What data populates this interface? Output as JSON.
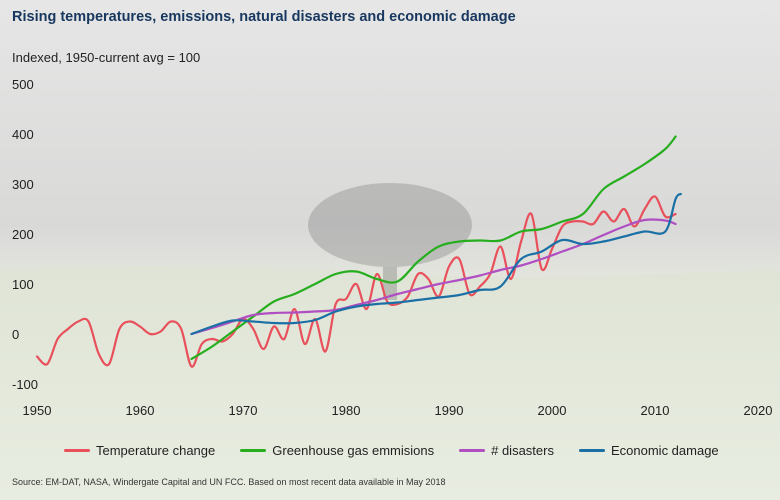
{
  "title": "Rising temperatures, emissions, natural disasters and economic damage",
  "subtitle": "Indexed, 1950-current avg = 100",
  "source": "Source: EM-DAT, NASA, Windergate Capital and UN FCC. Based on most recent data available in May 2018",
  "colors": {
    "temperature": "#e8505b",
    "greenhouse": "#27ae1f",
    "disasters": "#b04fc2",
    "economic": "#1a6fa5",
    "title": "#17375e"
  },
  "chart_data": {
    "type": "line",
    "title": "Rising temperatures, emissions, natural disasters and economic damage",
    "ylabel": "Indexed, 1950-current avg = 100",
    "xlabel": "",
    "xlim": [
      1950,
      2020
    ],
    "ylim": [
      -100,
      500
    ],
    "x_ticks": [
      1950,
      1960,
      1970,
      1980,
      1990,
      2000,
      2010,
      2020
    ],
    "y_ticks": [
      -100,
      0,
      100,
      200,
      300,
      400,
      500
    ],
    "grid": false,
    "legend_position": "bottom",
    "series": [
      {
        "name": "Temperature change",
        "color_key": "temperature",
        "points": [
          [
            1950,
            -45
          ],
          [
            1951,
            -60
          ],
          [
            1952,
            -10
          ],
          [
            1953,
            10
          ],
          [
            1954,
            25
          ],
          [
            1955,
            25
          ],
          [
            1956,
            -40
          ],
          [
            1957,
            -60
          ],
          [
            1958,
            10
          ],
          [
            1959,
            25
          ],
          [
            1960,
            15
          ],
          [
            1961,
            0
          ],
          [
            1962,
            5
          ],
          [
            1963,
            25
          ],
          [
            1964,
            10
          ],
          [
            1965,
            -65
          ],
          [
            1966,
            -20
          ],
          [
            1967,
            -10
          ],
          [
            1968,
            -15
          ],
          [
            1969,
            0
          ],
          [
            1970,
            30
          ],
          [
            1971,
            10
          ],
          [
            1972,
            -30
          ],
          [
            1973,
            15
          ],
          [
            1974,
            -10
          ],
          [
            1975,
            50
          ],
          [
            1976,
            -20
          ],
          [
            1977,
            30
          ],
          [
            1978,
            -35
          ],
          [
            1979,
            60
          ],
          [
            1980,
            70
          ],
          [
            1981,
            100
          ],
          [
            1982,
            50
          ],
          [
            1983,
            120
          ],
          [
            1984,
            65
          ],
          [
            1985,
            60
          ],
          [
            1986,
            75
          ],
          [
            1987,
            120
          ],
          [
            1988,
            110
          ],
          [
            1989,
            75
          ],
          [
            1990,
            135
          ],
          [
            1991,
            150
          ],
          [
            1992,
            80
          ],
          [
            1993,
            95
          ],
          [
            1994,
            120
          ],
          [
            1995,
            175
          ],
          [
            1996,
            110
          ],
          [
            1997,
            185
          ],
          [
            1998,
            240
          ],
          [
            1999,
            130
          ],
          [
            2000,
            170
          ],
          [
            2001,
            215
          ],
          [
            2002,
            225
          ],
          [
            2003,
            225
          ],
          [
            2004,
            220
          ],
          [
            2005,
            245
          ],
          [
            2006,
            225
          ],
          [
            2007,
            250
          ],
          [
            2008,
            215
          ],
          [
            2009,
            250
          ],
          [
            2010,
            275
          ],
          [
            2011,
            235
          ],
          [
            2012,
            240
          ]
        ]
      },
      {
        "name": "Greenhouse gas emmisions",
        "color_key": "greenhouse",
        "points": [
          [
            1965,
            -50
          ],
          [
            1967,
            -25
          ],
          [
            1969,
            5
          ],
          [
            1971,
            35
          ],
          [
            1973,
            65
          ],
          [
            1975,
            80
          ],
          [
            1977,
            100
          ],
          [
            1979,
            120
          ],
          [
            1981,
            125
          ],
          [
            1983,
            110
          ],
          [
            1985,
            105
          ],
          [
            1987,
            145
          ],
          [
            1989,
            175
          ],
          [
            1991,
            185
          ],
          [
            1993,
            187
          ],
          [
            1995,
            187
          ],
          [
            1997,
            205
          ],
          [
            1999,
            210
          ],
          [
            2001,
            225
          ],
          [
            2003,
            240
          ],
          [
            2005,
            290
          ],
          [
            2007,
            315
          ],
          [
            2009,
            340
          ],
          [
            2011,
            370
          ],
          [
            2012,
            395
          ]
        ]
      },
      {
        "name": "# disasters",
        "color_key": "disasters",
        "points": [
          [
            1965,
            0
          ],
          [
            1967,
            12
          ],
          [
            1969,
            25
          ],
          [
            1971,
            38
          ],
          [
            1973,
            42
          ],
          [
            1975,
            43
          ],
          [
            1977,
            45
          ],
          [
            1979,
            48
          ],
          [
            1981,
            58
          ],
          [
            1983,
            68
          ],
          [
            1985,
            80
          ],
          [
            1987,
            90
          ],
          [
            1989,
            100
          ],
          [
            1991,
            108
          ],
          [
            1993,
            117
          ],
          [
            1995,
            128
          ],
          [
            1997,
            137
          ],
          [
            1999,
            150
          ],
          [
            2001,
            165
          ],
          [
            2003,
            180
          ],
          [
            2005,
            198
          ],
          [
            2007,
            215
          ],
          [
            2009,
            228
          ],
          [
            2011,
            227
          ],
          [
            2012,
            220
          ]
        ]
      },
      {
        "name": "Economic damage",
        "color_key": "economic",
        "points": [
          [
            1965,
            0
          ],
          [
            1967,
            15
          ],
          [
            1969,
            27
          ],
          [
            1971,
            25
          ],
          [
            1973,
            22
          ],
          [
            1975,
            22
          ],
          [
            1977,
            28
          ],
          [
            1979,
            45
          ],
          [
            1981,
            55
          ],
          [
            1983,
            60
          ],
          [
            1985,
            63
          ],
          [
            1987,
            68
          ],
          [
            1989,
            73
          ],
          [
            1991,
            78
          ],
          [
            1993,
            88
          ],
          [
            1995,
            95
          ],
          [
            1997,
            150
          ],
          [
            1999,
            165
          ],
          [
            2001,
            188
          ],
          [
            2003,
            180
          ],
          [
            2005,
            185
          ],
          [
            2007,
            195
          ],
          [
            2009,
            205
          ],
          [
            2011,
            205
          ],
          [
            2012,
            270
          ],
          [
            2012.5,
            280
          ]
        ]
      }
    ]
  }
}
